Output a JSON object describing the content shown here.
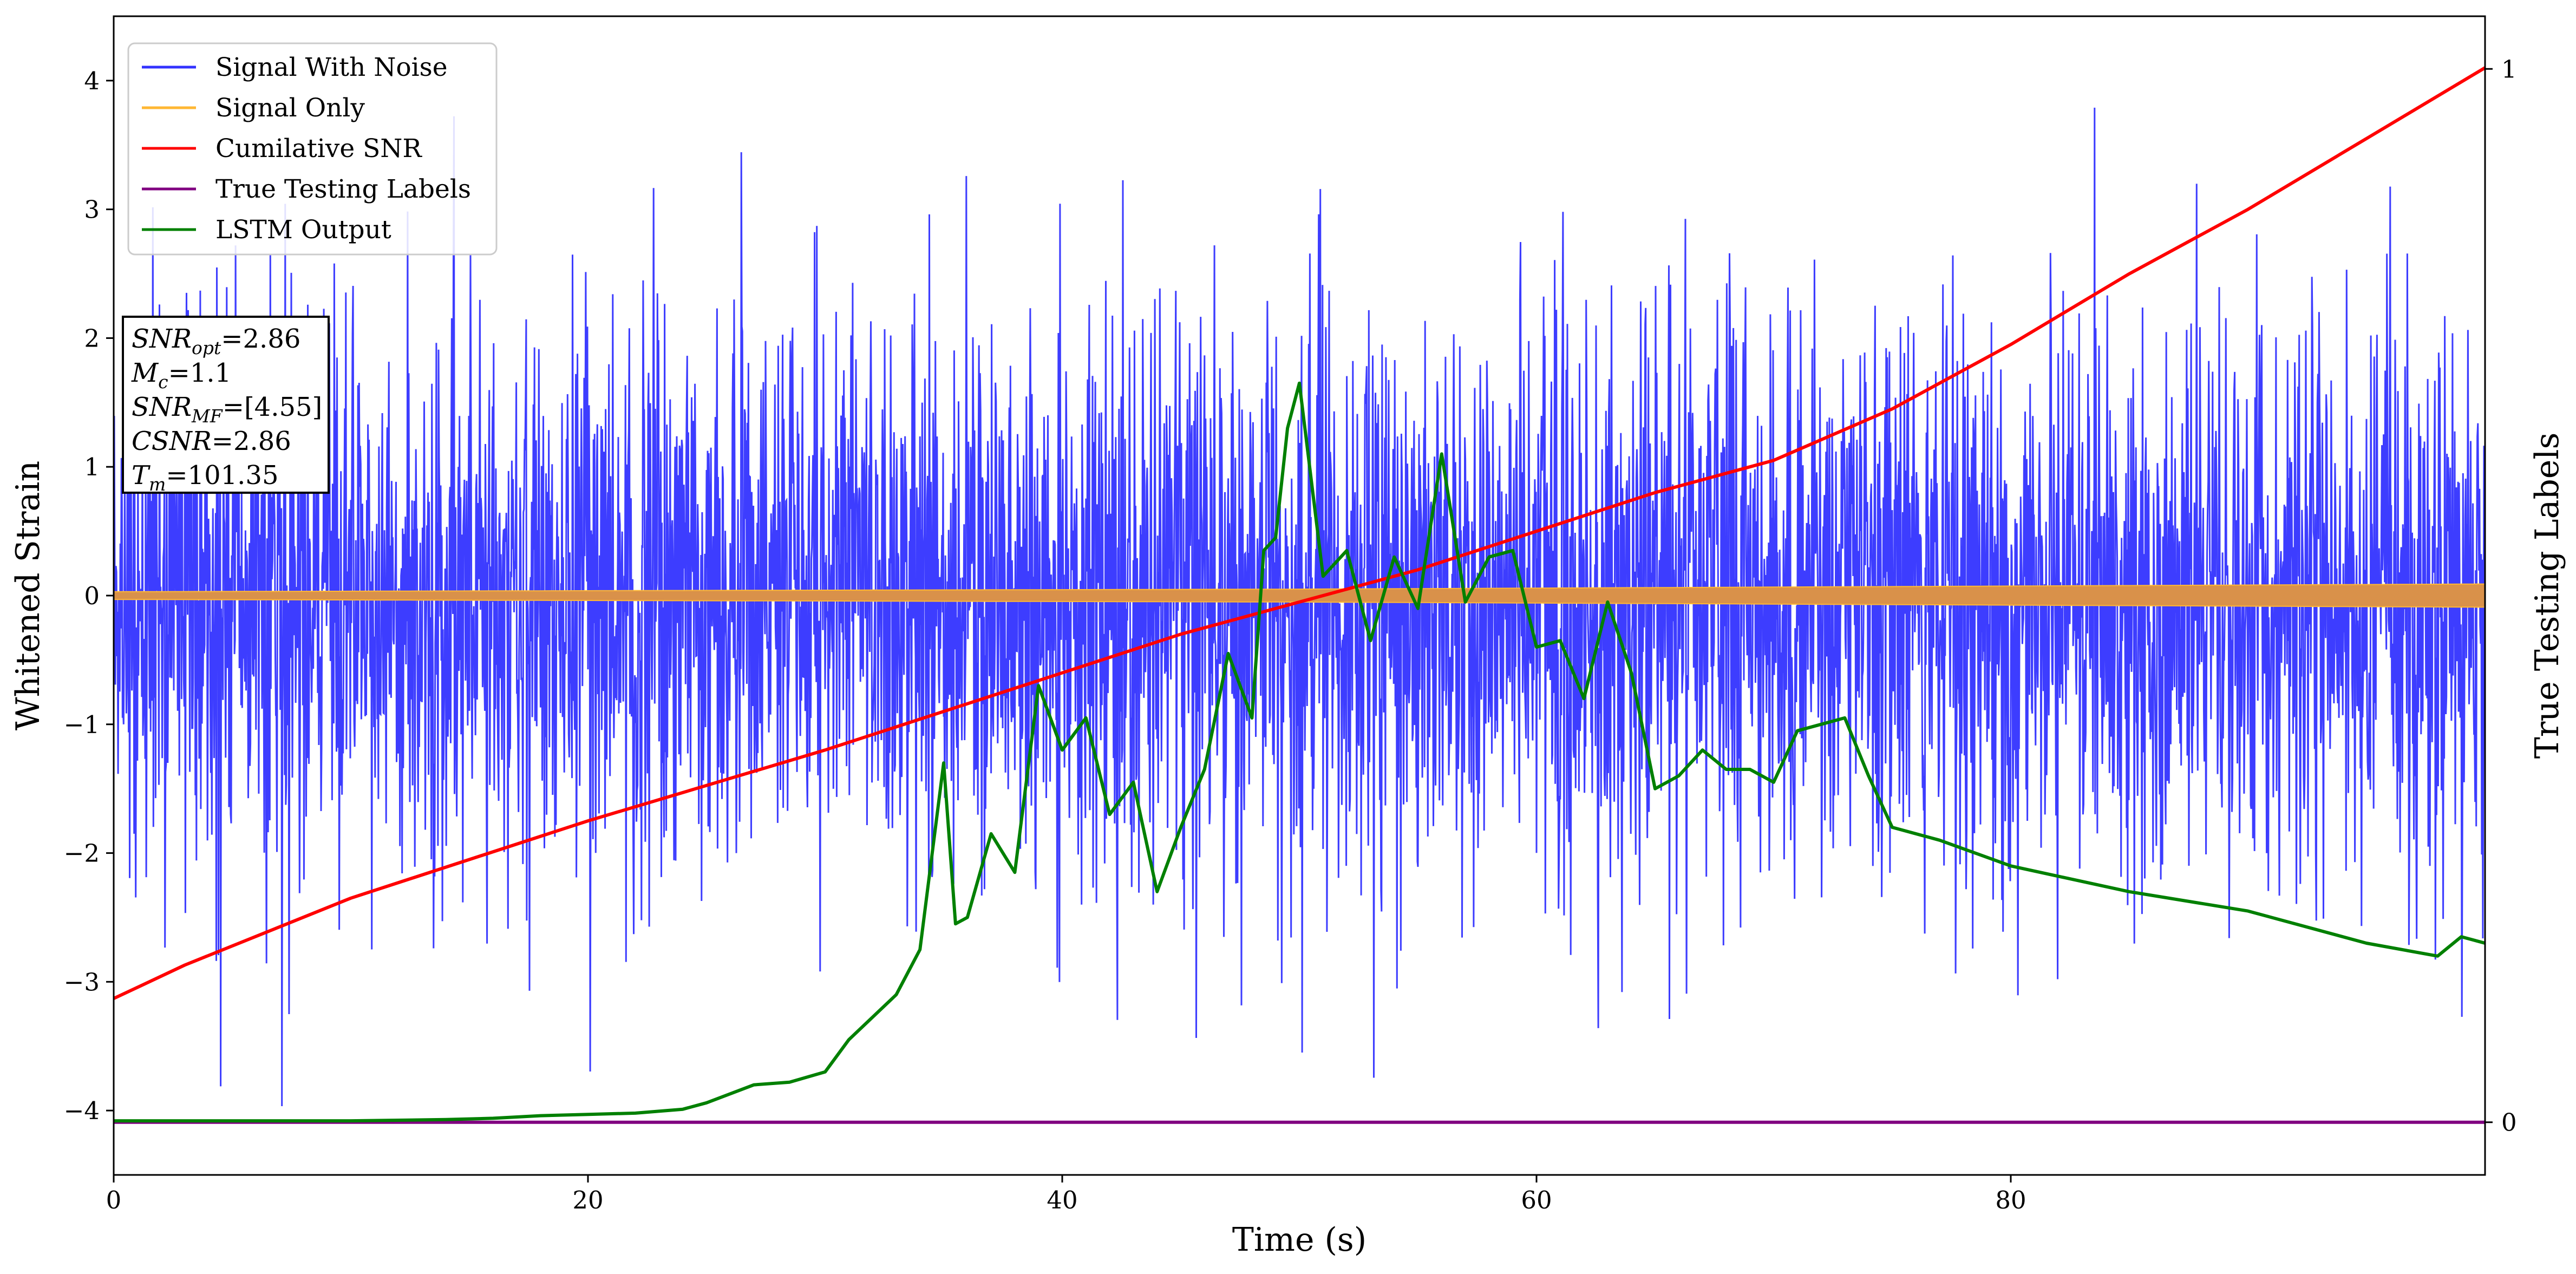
{
  "chart_data": {
    "type": "line",
    "title": "",
    "xlabel": "Time (s)",
    "ylabel": "Whitened Strain",
    "y2label": "True Testing Labels",
    "xlim": [
      0,
      100
    ],
    "ylim": [
      -4.5,
      4.5
    ],
    "y2lim": [
      -0.05,
      1.05
    ],
    "x_ticks": [
      0,
      20,
      40,
      60,
      80
    ],
    "y_ticks": [
      -4,
      -3,
      -2,
      -1,
      0,
      1,
      2,
      3,
      4
    ],
    "y2_ticks": [
      0,
      1
    ],
    "grid": false,
    "legend_position": "top-left",
    "series": [
      {
        "name": "Signal With Noise",
        "axis": "left",
        "color": "#3333ff",
        "kind": "noise",
        "noise_std": 1.1,
        "noise_max": 3.8,
        "noise_min": -4.1
      },
      {
        "name": "Signal Only",
        "axis": "left",
        "color": "#ffb733",
        "band_color": "#d9914a",
        "kind": "band",
        "x": [
          0,
          25,
          50,
          75,
          100
        ],
        "amplitude": [
          0.03,
          0.04,
          0.05,
          0.07,
          0.09
        ]
      },
      {
        "name": "Cumilative SNR",
        "axis": "left",
        "color": "#ff0000",
        "kind": "line",
        "x": [
          0,
          3,
          10,
          20,
          30,
          40,
          45,
          50,
          55,
          60,
          65,
          70,
          75,
          80,
          85,
          90,
          95,
          100
        ],
        "y": [
          -3.13,
          -2.87,
          -2.35,
          -1.75,
          -1.2,
          -0.6,
          -0.3,
          -0.05,
          0.2,
          0.5,
          0.8,
          1.05,
          1.45,
          1.95,
          2.5,
          3.0,
          3.55,
          4.1
        ]
      },
      {
        "name": "True Testing Labels",
        "axis": "right",
        "color": "#800080",
        "kind": "line",
        "x": [
          0,
          100
        ],
        "y": [
          0,
          0
        ]
      },
      {
        "name": "LSTM Output",
        "axis": "left",
        "color": "#008000",
        "kind": "line",
        "x": [
          0,
          10,
          14,
          16,
          18,
          20,
          22,
          24,
          25,
          27,
          28.5,
          30,
          31,
          33,
          34,
          35,
          35.5,
          36,
          37,
          38,
          39,
          40,
          41,
          42,
          43,
          44,
          45,
          46,
          47,
          48,
          48.5,
          49,
          49.5,
          50,
          51,
          52,
          53,
          54,
          55,
          56,
          57,
          58,
          59,
          60,
          61,
          62,
          63,
          64,
          65,
          66,
          67,
          68,
          69,
          70,
          71,
          72,
          73,
          74,
          75,
          77,
          80,
          85,
          90,
          95,
          98,
          99,
          100
        ],
        "y": [
          -4.08,
          -4.08,
          -4.07,
          -4.06,
          -4.04,
          -4.03,
          -4.02,
          -3.99,
          -3.94,
          -3.8,
          -3.78,
          -3.7,
          -3.45,
          -3.1,
          -2.75,
          -1.3,
          -2.55,
          -2.5,
          -1.85,
          -2.15,
          -0.7,
          -1.2,
          -0.95,
          -1.7,
          -1.45,
          -2.3,
          -1.8,
          -1.35,
          -0.45,
          -0.95,
          0.35,
          0.45,
          1.3,
          1.65,
          0.15,
          0.35,
          -0.35,
          0.3,
          -0.1,
          1.1,
          -0.05,
          0.3,
          0.35,
          -0.4,
          -0.35,
          -0.8,
          -0.05,
          -0.6,
          -1.5,
          -1.4,
          -1.2,
          -1.35,
          -1.35,
          -1.45,
          -1.05,
          -1.0,
          -0.95,
          -1.4,
          -1.8,
          -1.9,
          -2.1,
          -2.3,
          -2.45,
          -2.7,
          -2.8,
          -2.65,
          -2.7
        ]
      }
    ]
  },
  "legend": {
    "items": [
      {
        "label": "Signal With Noise",
        "color": "#3333ff"
      },
      {
        "label": "Signal Only",
        "color": "#ffb733"
      },
      {
        "label": "Cumilative SNR",
        "color": "#ff0000"
      },
      {
        "label": "True Testing Labels",
        "color": "#800080"
      },
      {
        "label": "LSTM Output",
        "color": "#008000"
      }
    ]
  },
  "annotation": {
    "lines": [
      {
        "base": "SNR",
        "sub": "opt",
        "value": "=2.86"
      },
      {
        "base": "M",
        "sub": "c",
        "value": "=1.1"
      },
      {
        "base": "SNR",
        "sub": "MF",
        "value": "=[4.55]"
      },
      {
        "base": "CSNR",
        "sub": "",
        "value": "=2.86"
      },
      {
        "base": "T",
        "sub": "m",
        "value": "=101.35"
      }
    ]
  }
}
